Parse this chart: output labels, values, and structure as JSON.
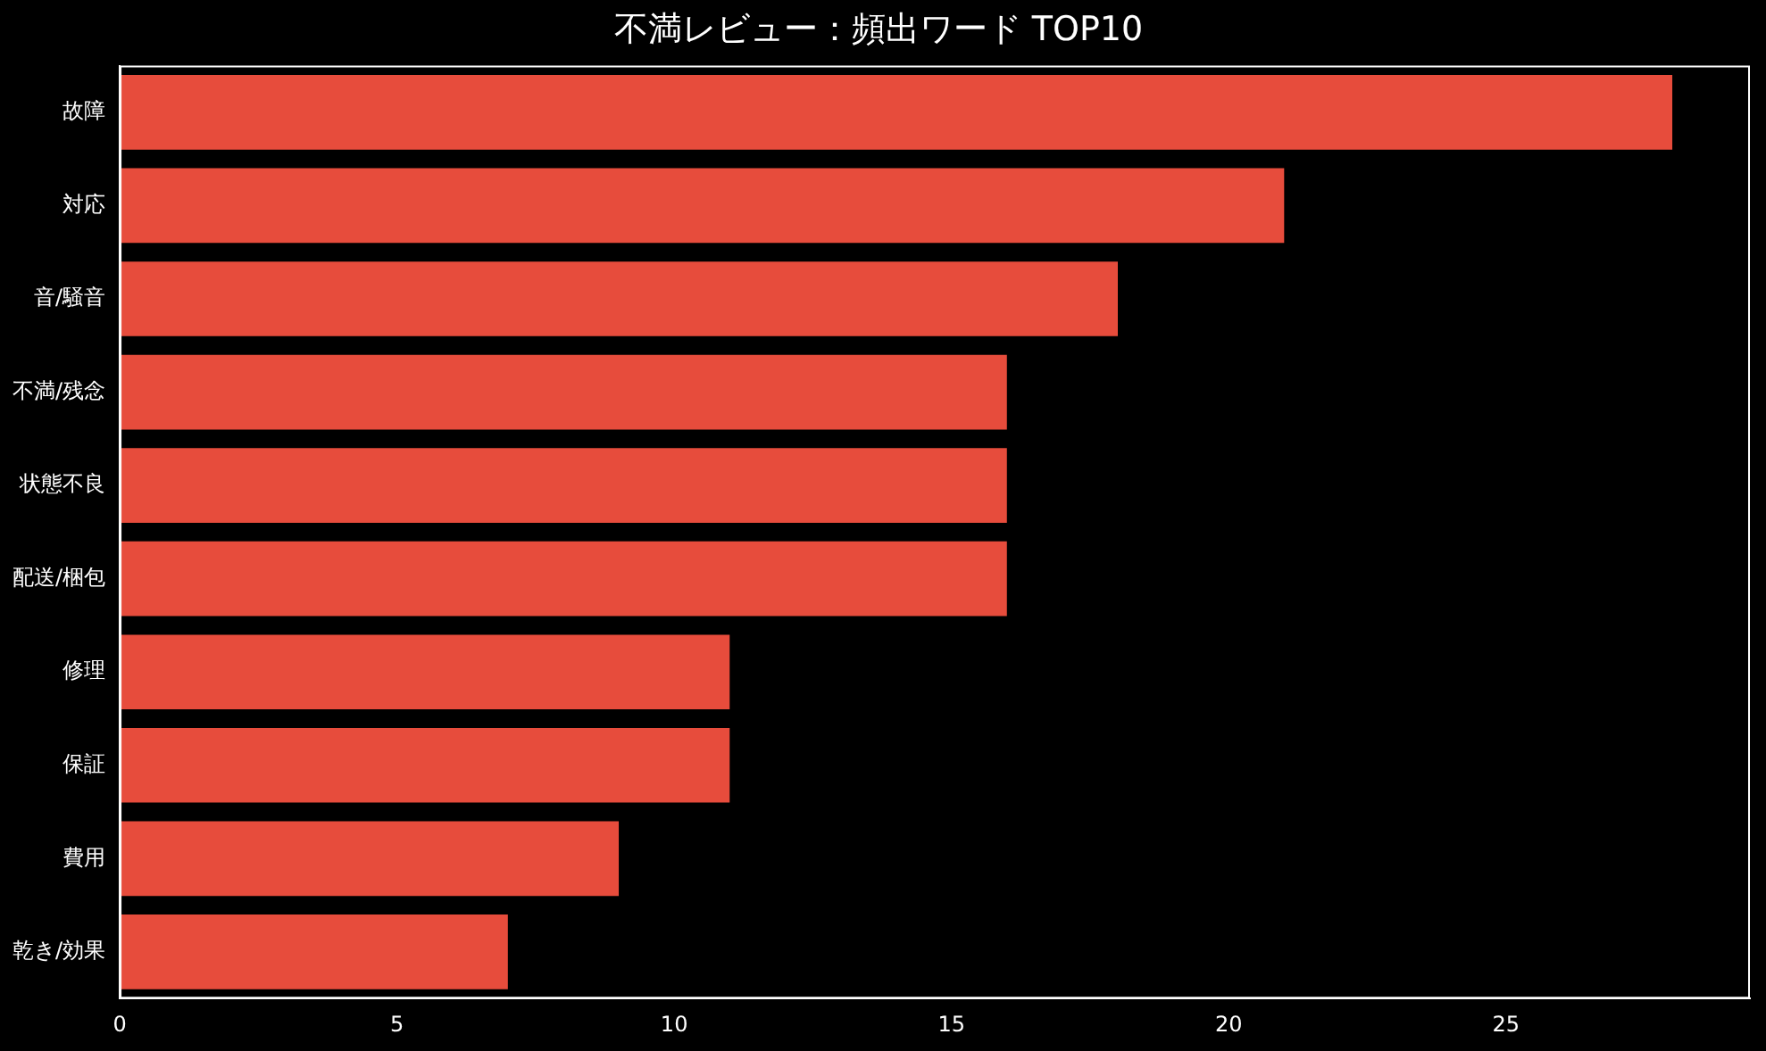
{
  "chart_data": {
    "type": "bar",
    "orientation": "horizontal",
    "title": "不満レビュー：頻出ワード TOP10",
    "categories": [
      "故障",
      "対応",
      "音/騒音",
      "不満/残念",
      "状態不良",
      "配送/梱包",
      "修理",
      "保証",
      "費用",
      "乾き/効果"
    ],
    "values": [
      28,
      21,
      18,
      16,
      16,
      16,
      11,
      11,
      9,
      7
    ],
    "color": "#e74c3c",
    "xlim": [
      0,
      29.4
    ],
    "xticks": [
      0,
      5,
      10,
      15,
      20,
      25
    ],
    "grid": false,
    "legend": false
  }
}
